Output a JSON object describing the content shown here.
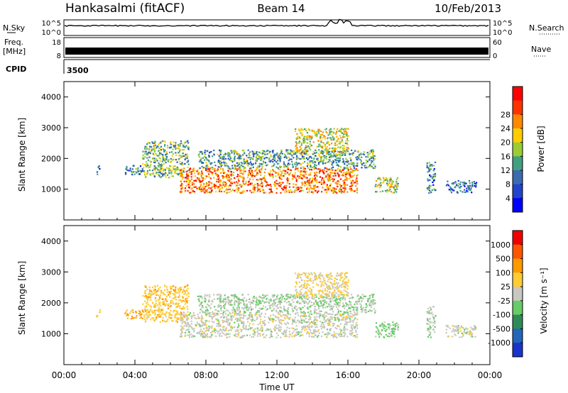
{
  "header": {
    "station": "Hankasalmi (fitACF)",
    "beam": "Beam 14",
    "date": "10/Feb/2013"
  },
  "nsky": {
    "label": "N.Sky",
    "ticks": [
      "10^5",
      "10^0"
    ],
    "right_label": "N.Search",
    "right_ticks": [
      "10^5",
      "10^0"
    ]
  },
  "freq": {
    "label_top": "Freq.",
    "label_unit": "[MHz]",
    "ticks": [
      "18",
      "8"
    ],
    "right_label": "Nave",
    "right_ticks": [
      "60",
      "0"
    ]
  },
  "cpid": {
    "label": "CPID",
    "value": "3500"
  },
  "x_axis": {
    "title": "Time UT",
    "ticks": [
      "00:00",
      "04:00",
      "08:00",
      "12:00",
      "16:00",
      "20:00",
      "00:00"
    ],
    "range_hours": [
      0,
      24
    ]
  },
  "power_panel": {
    "ylabel": "Slant Range [km]",
    "yticks": [
      "1000",
      "2000",
      "3000",
      "4000"
    ],
    "colorbar_label": "Power [dB]",
    "colorbar_ticks": [
      "4",
      "8",
      "12",
      "16",
      "20",
      "24",
      "28"
    ],
    "colors": [
      "#0000ff",
      "#2244cc",
      "#3a6bb0",
      "#40a080",
      "#9acd32",
      "#ffcc00",
      "#ff8800",
      "#ff3300",
      "#ff0000"
    ]
  },
  "velocity_panel": {
    "ylabel": "Slant Range [km]",
    "yticks": [
      "1000",
      "2000",
      "3000",
      "4000"
    ],
    "colorbar_label": "Velocity [m s⁻¹]",
    "colorbar_ticks": [
      "1000",
      "500",
      "100",
      "25",
      "-25",
      "-100",
      "-500",
      "-1000"
    ],
    "colors": [
      "#1a33cc",
      "#2266bb",
      "#2e8b57",
      "#66cc66",
      "#c8c8c0",
      "#ffcc33",
      "#ff9900",
      "#ff5500",
      "#ee0000"
    ]
  },
  "chart_data": {
    "type": "heatmap",
    "xlabel": "Time UT",
    "ylabel": "Slant Range [km]",
    "x_range_hours": [
      0,
      24
    ],
    "y_range_km": [
      0,
      4500
    ],
    "power_db_range": [
      0,
      32
    ],
    "velocity_ms_range": [
      -1000,
      1000
    ],
    "scatter_regions": [
      {
        "start_hour": 1.8,
        "end_hour": 2.0,
        "min_km": 1500,
        "max_km": 1800,
        "power_db": 8,
        "velocity_ms": -300
      },
      {
        "start_hour": 3.4,
        "end_hour": 4.4,
        "min_km": 1500,
        "max_km": 1800,
        "power_db": 10,
        "velocity_ms": -400
      },
      {
        "start_hour": 4.4,
        "end_hour": 7.0,
        "min_km": 1400,
        "max_km": 2600,
        "power_db": 14,
        "velocity_ms": -250
      },
      {
        "start_hour": 6.5,
        "end_hour": 16.5,
        "min_km": 900,
        "max_km": 1700,
        "power_db": 24,
        "velocity_ms": 0
      },
      {
        "start_hour": 7.5,
        "end_hour": 17.5,
        "min_km": 1700,
        "max_km": 2300,
        "power_db": 12,
        "velocity_ms": 80
      },
      {
        "start_hour": 13.0,
        "end_hour": 16.0,
        "min_km": 2200,
        "max_km": 3000,
        "power_db": 18,
        "velocity_ms": -150
      },
      {
        "start_hour": 17.5,
        "end_hour": 18.8,
        "min_km": 900,
        "max_km": 1400,
        "power_db": 16,
        "velocity_ms": 150
      },
      {
        "start_hour": 20.4,
        "end_hour": 20.9,
        "min_km": 900,
        "max_km": 1900,
        "power_db": 10,
        "velocity_ms": 100
      },
      {
        "start_hour": 21.5,
        "end_hour": 23.2,
        "min_km": 900,
        "max_km": 1300,
        "power_db": 8,
        "velocity_ms": 0
      }
    ]
  }
}
